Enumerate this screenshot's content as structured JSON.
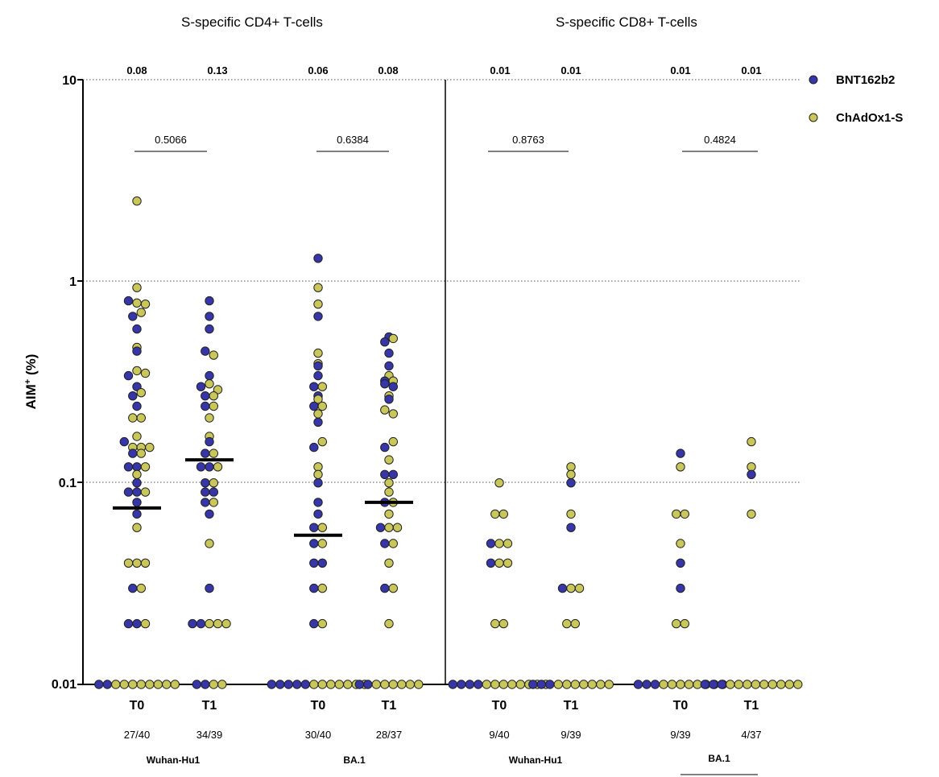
{
  "panel_titles": [
    "S-specific CD4+ T-cells",
    "S-specific CD8+ T-cells"
  ],
  "y_axis": {
    "label_main": "AIM",
    "label_sup": "+",
    "label_tail": " (%)",
    "ticks": [
      "10",
      "1",
      "0.1",
      "0.01"
    ]
  },
  "legend": [
    {
      "name": "BNT162b2",
      "color": "#3636a8"
    },
    {
      "name": "ChAdOx1-S",
      "color": "#c9c65a"
    }
  ],
  "colors": {
    "bnt": "#3636a8",
    "chad": "#c9c65a",
    "outline": "#222222",
    "median": "#000000"
  },
  "groups": [
    {
      "timepoint": "T0",
      "fraction": "27/40",
      "median_label": "0.08",
      "median": 0.075
    },
    {
      "timepoint": "T1",
      "fraction": "34/39",
      "median_label": "0.13",
      "median": 0.13
    },
    {
      "timepoint": "T0",
      "fraction": "30/40",
      "median_label": "0.06",
      "median": 0.055
    },
    {
      "timepoint": "T1",
      "fraction": "28/37",
      "median_label": "0.08",
      "median": 0.08
    },
    {
      "timepoint": "T0",
      "fraction": "9/40",
      "median_label": "0.01",
      "median": null
    },
    {
      "timepoint": "T1",
      "fraction": "9/39",
      "median_label": "0.01",
      "median": null
    },
    {
      "timepoint": "T0",
      "fraction": "9/39",
      "median_label": "0.01",
      "median": null
    },
    {
      "timepoint": "T1",
      "fraction": "4/37",
      "median_label": "0.01",
      "median": null
    }
  ],
  "variants": [
    "Wuhan-Hu1",
    "BA.1",
    "Wuhan-Hu1",
    "BA.1"
  ],
  "p_values": [
    "0.5066",
    "0.6384",
    "0.8763",
    "0.4824"
  ],
  "chart_data": {
    "type": "scatter",
    "ylabel": "AIM+ (%)",
    "yscale": "log",
    "ylim": [
      0.01,
      10
    ],
    "grid": "dotted horizontal at 1, 0.1 and 10",
    "legend_position": "top-right",
    "series_names": [
      "BNT162b2",
      "ChAdOx1-S"
    ],
    "groups": [
      {
        "bnt": [
          0.8,
          0.67,
          0.58,
          0.45,
          0.34,
          0.3,
          0.27,
          0.24,
          0.16,
          0.14,
          0.12,
          0.12,
          0.1,
          0.09,
          0.09,
          0.08,
          0.07,
          0.03,
          0.02,
          0.02,
          0.01,
          0.01
        ],
        "chad": [
          2.5,
          0.93,
          0.78,
          0.77,
          0.7,
          0.47,
          0.36,
          0.35,
          0.28,
          0.21,
          0.21,
          0.17,
          0.15,
          0.15,
          0.15,
          0.14,
          0.12,
          0.11,
          0.09,
          0.06,
          0.04,
          0.04,
          0.04,
          0.03,
          0.02,
          0.01,
          0.01,
          0.01,
          0.01,
          0.01,
          0.01,
          0.01,
          0.01
        ]
      },
      {
        "bnt": [
          0.8,
          0.67,
          0.58,
          0.45,
          0.34,
          0.3,
          0.27,
          0.24,
          0.16,
          0.14,
          0.12,
          0.12,
          0.1,
          0.09,
          0.09,
          0.08,
          0.07,
          0.03,
          0.02,
          0.02,
          0.01,
          0.01
        ],
        "chad": [
          0.43,
          0.31,
          0.29,
          0.27,
          0.24,
          0.21,
          0.17,
          0.14,
          0.12,
          0.1,
          0.08,
          0.05,
          0.02,
          0.02,
          0.02,
          0.01,
          0.01
        ]
      },
      {
        "bnt": [
          1.3,
          0.67,
          0.38,
          0.34,
          0.3,
          0.27,
          0.24,
          0.2,
          0.15,
          0.1,
          0.08,
          0.07,
          0.06,
          0.05,
          0.04,
          0.04,
          0.03,
          0.02,
          0.01,
          0.01,
          0.01,
          0.01,
          0.01
        ],
        "chad": [
          0.93,
          0.77,
          0.44,
          0.39,
          0.3,
          0.26,
          0.24,
          0.22,
          0.16,
          0.12,
          0.11,
          0.06,
          0.05,
          0.03,
          0.02,
          0.01,
          0.01,
          0.01,
          0.01,
          0.01,
          0.01,
          0.01
        ]
      },
      {
        "bnt": [
          0.53,
          0.5,
          0.44,
          0.38,
          0.32,
          0.31,
          0.3,
          0.26,
          0.15,
          0.11,
          0.11,
          0.08,
          0.06,
          0.05,
          0.03,
          0.01,
          0.01
        ],
        "chad": [
          0.52,
          0.34,
          0.32,
          0.27,
          0.23,
          0.22,
          0.16,
          0.13,
          0.1,
          0.09,
          0.08,
          0.07,
          0.06,
          0.06,
          0.05,
          0.04,
          0.03,
          0.02,
          0.01,
          0.01,
          0.01,
          0.01,
          0.01,
          0.01
        ]
      },
      {
        "bnt": [
          0.05,
          0.04,
          0.01,
          0.01,
          0.01,
          0.01
        ],
        "chad": [
          0.1,
          0.07,
          0.07,
          0.05,
          0.05,
          0.04,
          0.04,
          0.02,
          0.02,
          0.01,
          0.01,
          0.01,
          0.01,
          0.01,
          0.01,
          0.01,
          0.01
        ]
      },
      {
        "bnt": [
          0.1,
          0.06,
          0.03,
          0.01,
          0.01,
          0.01
        ],
        "chad": [
          0.12,
          0.11,
          0.07,
          0.03,
          0.03,
          0.02,
          0.02,
          0.01,
          0.01,
          0.01,
          0.01,
          0.01,
          0.01,
          0.01
        ]
      },
      {
        "bnt": [
          0.14,
          0.04,
          0.03,
          0.01,
          0.01,
          0.01
        ],
        "chad": [
          0.12,
          0.07,
          0.07,
          0.05,
          0.02,
          0.02,
          0.01,
          0.01,
          0.01,
          0.01,
          0.01,
          0.01,
          0.01,
          0.01
        ]
      },
      {
        "bnt": [
          0.11,
          0.01,
          0.01,
          0.01
        ],
        "chad": [
          0.16,
          0.12,
          0.07,
          0.01,
          0.01,
          0.01,
          0.01,
          0.01,
          0.01,
          0.01,
          0.01,
          0.01
        ]
      }
    ]
  }
}
